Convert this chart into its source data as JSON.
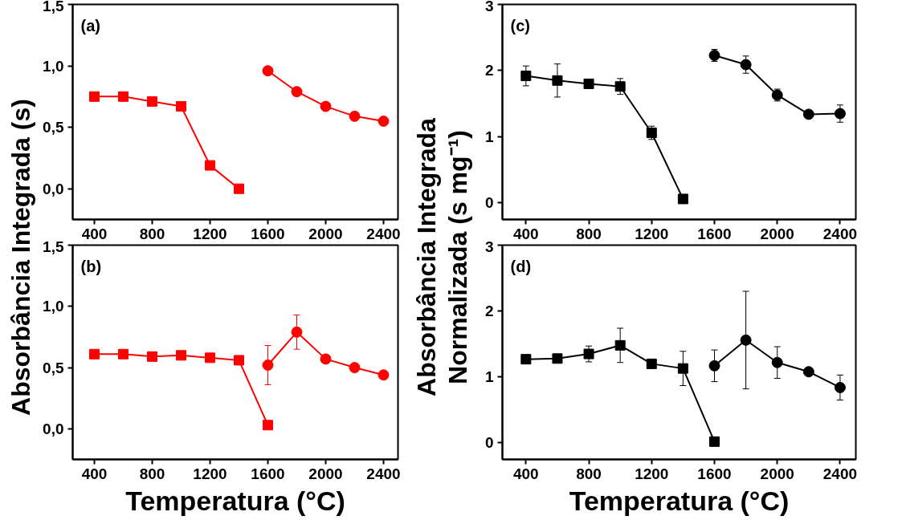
{
  "chart_data": [
    {
      "type": "line",
      "ylabel": "Absorbância Integrada (s)",
      "annotations": [
        "(a)"
      ],
      "xlim": [
        250,
        2500
      ],
      "ylim": [
        -0.25,
        1.5
      ],
      "xticks": [
        400,
        800,
        1200,
        1600,
        2000,
        2400
      ],
      "yticks": [
        {
          "value": 0,
          "label": "0,0"
        },
        {
          "value": 0.5,
          "label": "0,5"
        },
        {
          "value": 1,
          "label": "1,0"
        },
        {
          "value": 1.5,
          "label": "1,5"
        }
      ],
      "grid": false,
      "tick_labels": "xy",
      "series": [
        {
          "color": "#ff0000",
          "marker": "square",
          "x": [
            400,
            600,
            800,
            1000,
            1200,
            1400
          ],
          "values": [
            0.75,
            0.75,
            0.71,
            0.67,
            0.19,
            0.0
          ]
        },
        {
          "color": "#ff0000",
          "marker": "circle",
          "x": [
            1600,
            1800,
            2000,
            2200,
            2400
          ],
          "values": [
            0.96,
            0.79,
            0.67,
            0.59,
            0.55
          ]
        }
      ]
    },
    {
      "type": "line",
      "xlabel": "Temperatura (°C)",
      "annotations": [
        "(b)"
      ],
      "xlim": [
        250,
        2500
      ],
      "ylim": [
        -0.25,
        1.5
      ],
      "xticks": [
        400,
        800,
        1200,
        1600,
        2000,
        2400
      ],
      "yticks": [
        {
          "value": 0,
          "label": "0,0"
        },
        {
          "value": 0.5,
          "label": "0,5"
        },
        {
          "value": 1,
          "label": "1,0"
        },
        {
          "value": 1.5,
          "label": "1,5"
        }
      ],
      "grid": false,
      "series": [
        {
          "color": "#ff0000",
          "marker": "square",
          "x": [
            400,
            600,
            800,
            1000,
            1200,
            1400,
            1600
          ],
          "values": [
            0.61,
            0.61,
            0.59,
            0.6,
            0.58,
            0.56,
            0.03
          ]
        },
        {
          "color": "#ff0000",
          "marker": "circle",
          "x": [
            1600,
            1800,
            2000,
            2200,
            2400
          ],
          "values": [
            0.52,
            0.79,
            0.57,
            0.5,
            0.44
          ],
          "errors": [
            0.16,
            0.14,
            null,
            null,
            null
          ]
        }
      ]
    },
    {
      "type": "line",
      "ylabel": "Absorbância Integrada\nNormalizada (s mg⁻¹)",
      "annotations": [
        "(c)"
      ],
      "xlim": [
        250,
        2500
      ],
      "ylim": [
        -0.25,
        3
      ],
      "xticks": [
        400,
        800,
        1200,
        1600,
        2000,
        2400
      ],
      "yticks": [
        0,
        1,
        2,
        3
      ],
      "grid": false,
      "series": [
        {
          "color": "#000000",
          "marker": "square",
          "x": [
            400,
            600,
            800,
            1000,
            1200,
            1400
          ],
          "values": [
            1.92,
            1.85,
            1.8,
            1.76,
            1.06,
            0.06
          ],
          "errors": [
            0.15,
            0.25,
            0.06,
            0.12,
            0.1,
            null
          ]
        },
        {
          "color": "#000000",
          "marker": "circle",
          "x": [
            1600,
            1800,
            2000,
            2200,
            2400
          ],
          "values": [
            2.23,
            2.09,
            1.63,
            1.34,
            1.35
          ],
          "errors": [
            0.09,
            0.13,
            0.09,
            null,
            0.13
          ]
        }
      ]
    },
    {
      "type": "line",
      "xlabel": "Temperatura (°C)",
      "annotations": [
        "(d)"
      ],
      "xlim": [
        250,
        2500
      ],
      "ylim": [
        -0.25,
        3
      ],
      "xticks": [
        400,
        800,
        1200,
        1600,
        2000,
        2400
      ],
      "yticks": [
        0,
        1,
        2,
        3
      ],
      "grid": false,
      "series": [
        {
          "color": "#000000",
          "marker": "square",
          "x": [
            400,
            600,
            800,
            1000,
            1200,
            1400,
            1600
          ],
          "values": [
            1.27,
            1.28,
            1.35,
            1.48,
            1.2,
            1.13,
            0.02
          ],
          "errors": [
            null,
            null,
            0.12,
            0.26,
            0.03,
            0.26,
            null
          ]
        },
        {
          "color": "#000000",
          "marker": "circle",
          "x": [
            1600,
            1800,
            2000,
            2200,
            2400
          ],
          "values": [
            1.17,
            1.56,
            1.22,
            1.08,
            0.84
          ],
          "errors": [
            0.24,
            0.74,
            0.24,
            null,
            0.19
          ]
        }
      ]
    }
  ]
}
